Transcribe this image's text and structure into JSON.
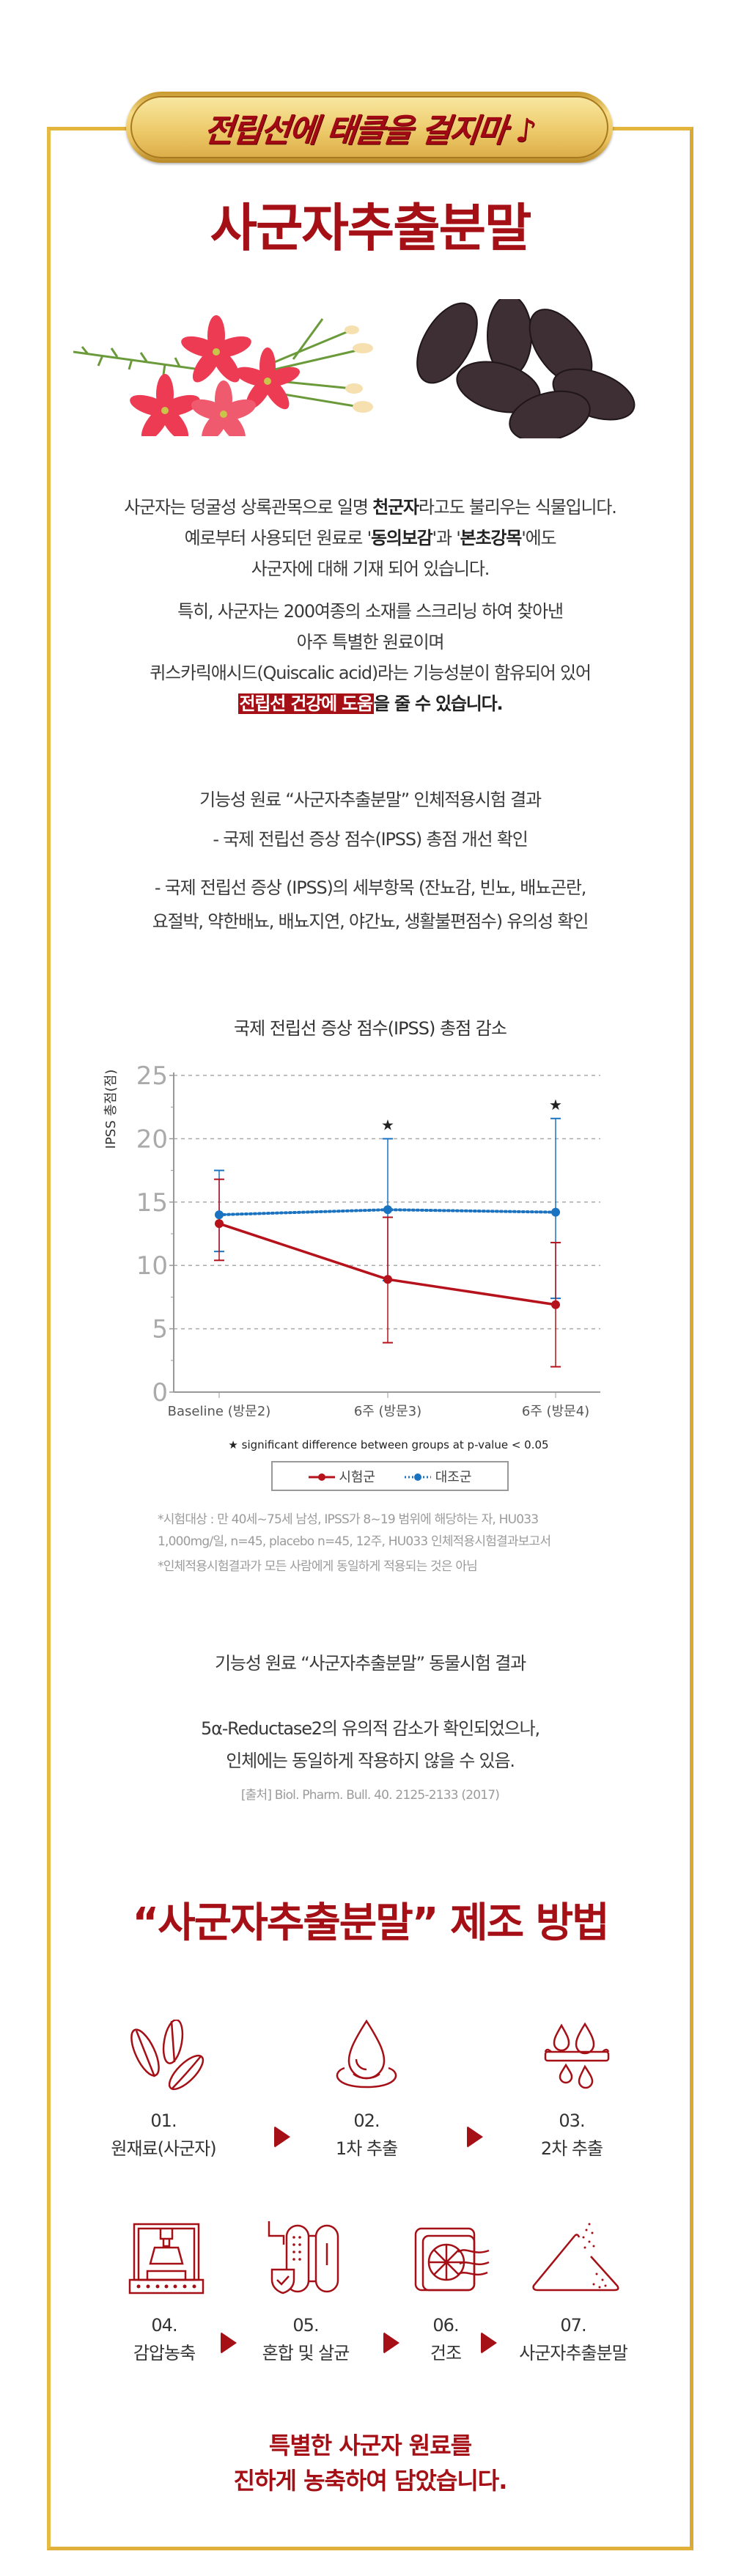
{
  "badge": {
    "text": "전립선에 태클을 걸지마 ♪"
  },
  "title": "사군자추출분말",
  "intro": {
    "p1": [
      {
        "pre": "사군자는 덩굴성 상록관목으로 일명 ",
        "bold": "천군자",
        "post": "라고도 불리우는 식물입니다."
      },
      {
        "pre": "예로부터 사용되던 원료로 '",
        "bold": "동의보감",
        "mid": "'과 '",
        "bold2": "본초강목",
        "post": "'에도"
      },
      {
        "pre": "사군자에 대해 기재 되어 있습니다."
      }
    ],
    "p2": [
      "특히, 사군자는 200여종의 소재를 스크리닝 하여 찾아낸",
      "아주 특별한 원료이며",
      "퀴스카릭애시드(Quiscalic acid)라는 기능성분이 함유되어 있어"
    ],
    "highlight": "전립선 건강에 도움",
    "highlight_post": "을 줄 수 있습니다."
  },
  "human_trial": {
    "heading": "기능성 원료 “사군자추출분말” 인체적용시험 결과",
    "point1": "- 국제 전립선 증상 점수(IPSS) 총점 개선 확인",
    "point2_line1": "- 국제 전립선 증상 (IPSS)의 세부항목 (잔뇨감, 빈뇨, 배뇨곤란,",
    "point2_line2": "요절박, 약한배뇨, 배뇨지연, 야간뇨, 생활불편점수) 유의성 확인"
  },
  "chart_data": {
    "type": "line",
    "title": "국제 전립선 증상 점수(IPSS) 총점 감소",
    "ylabel": "IPSS 총점(점)",
    "xlabel": "",
    "ylim": [
      0,
      25
    ],
    "yticks": [
      "0",
      "5",
      "10",
      "15",
      "20",
      "25"
    ],
    "categories": [
      "Baseline (방문2)",
      "6주 (방문3)",
      "6주 (방문4)"
    ],
    "grid": true,
    "series": [
      {
        "name": "시험군",
        "color": "#b5121b",
        "style": "solid",
        "values": [
          13.3,
          8.9,
          6.9
        ],
        "err_low": [
          10.4,
          3.9,
          2.0
        ],
        "err_high": [
          16.8,
          13.8,
          11.8
        ]
      },
      {
        "name": "대조군",
        "color": "#1a73c0",
        "style": "dotted",
        "values": [
          14.0,
          14.4,
          14.2
        ],
        "err_low": [
          11.1,
          8.8,
          7.4
        ],
        "err_high": [
          17.5,
          20.0,
          21.6
        ]
      }
    ],
    "significant": [
      false,
      true,
      true
    ],
    "note": "★ significant difference between groups at p-value < 0.05",
    "legend_position": "bottom"
  },
  "footnotes": [
    "*시험대상 : 만 40세~75세 남성, IPSS가 8~19 범위에 해당하는 자, HU033",
    "1,000mg/일, n=45, placebo n=45, 12주, HU033 인체적용시험결과보고서",
    "*인체적용시험결과가 모든 사람에게 동일하게 적용되는 것은 아님"
  ],
  "animal_trial": {
    "heading": "기능성 원료 “사군자추출분말” 동물시험 결과",
    "line1": "5α-Reductase2의 유의적 감소가 확인되었으나,",
    "line2": "인체에는 동일하게 작용하지 않을 수 있음.",
    "source": "[출처] Biol. Pharm. Bull. 40. 2125-2133 (2017)"
  },
  "process": {
    "title": "“사군자추출분말” 제조 방법",
    "steps": [
      {
        "num": "01.",
        "label": "원재료(사군자)",
        "icon": "seeds-icon"
      },
      {
        "num": "02.",
        "label": "1차 추출",
        "icon": "water-drop-icon"
      },
      {
        "num": "03.",
        "label": "2차 추출",
        "icon": "filter-drops-icon"
      },
      {
        "num": "04.",
        "label": "감압농축",
        "icon": "concentrator-icon"
      },
      {
        "num": "05.",
        "label": "혼합 및 살균",
        "icon": "sterilize-icon"
      },
      {
        "num": "06.",
        "label": "건조",
        "icon": "dryer-fan-icon"
      },
      {
        "num": "07.",
        "label": "사군자추출분말",
        "icon": "powder-icon"
      }
    ],
    "closing_line1": "특별한 사군자 원료를",
    "closing_line2": "진하게 농축하여 담았습니다."
  },
  "colors": {
    "accent": "#a50f16",
    "gold": "#e0b03a",
    "control": "#1a73c0"
  }
}
